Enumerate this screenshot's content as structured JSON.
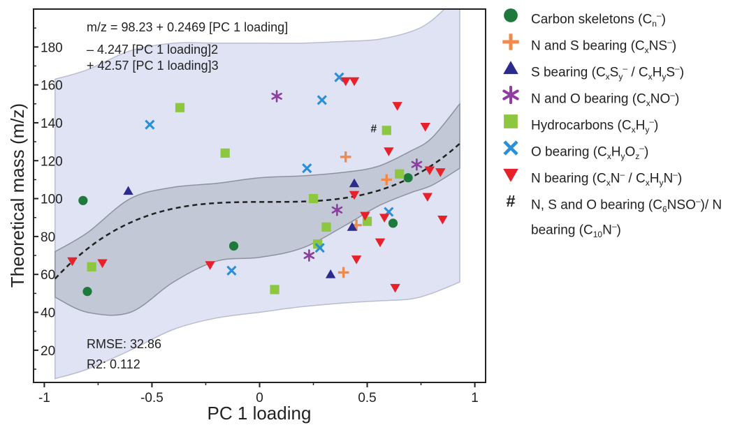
{
  "chart_data": {
    "type": "scatter",
    "xlabel": "PC 1 loading",
    "ylabel": "Theoretical mass (m/z)",
    "xlim": [
      -1.05,
      1.05
    ],
    "ylim": [
      3,
      200
    ],
    "x_ticks": [
      -1,
      -0.5,
      0,
      0.5,
      1
    ],
    "x_tick_labels": [
      "-1",
      "-0.5",
      "0",
      "0.5",
      "1"
    ],
    "y_ticks": [
      20,
      40,
      60,
      80,
      100,
      120,
      140,
      160,
      180
    ],
    "y_tick_labels": [
      "20",
      "40",
      "60",
      "80",
      "100",
      "120",
      "140",
      "160",
      "180"
    ],
    "grid": false,
    "legend_position": "right",
    "equation_lines": [
      "m/z = 98.23 + 0.2469 [PC 1 loading]",
      "– 4.247 [PC 1 loading]2",
      "+ 42.57 [PC 1 loading]3"
    ],
    "fit": {
      "intercept": 98.23,
      "c1": 0.2469,
      "c2": -4.247,
      "c3": 42.57,
      "x_range": [
        -0.95,
        0.93
      ],
      "rmse_label": "RMSE: 32.86",
      "r2_label": "R2: 0.112",
      "conf_band": [
        [
          -0.95,
          72,
          48
        ],
        [
          -0.8,
          82,
          40
        ],
        [
          -0.6,
          100,
          40
        ],
        [
          -0.4,
          106,
          56
        ],
        [
          -0.2,
          108,
          67
        ],
        [
          0,
          111,
          69
        ],
        [
          0.2,
          112,
          74
        ],
        [
          0.4,
          114,
          86
        ],
        [
          0.55,
          117,
          96
        ],
        [
          0.7,
          125,
          103
        ],
        [
          0.8,
          132,
          107
        ],
        [
          0.93,
          150,
          116
        ]
      ],
      "pred_band": [
        [
          -0.95,
          163,
          5
        ],
        [
          -0.8,
          168,
          10
        ],
        [
          -0.6,
          178,
          20
        ],
        [
          -0.4,
          182,
          31
        ],
        [
          -0.2,
          182,
          37
        ],
        [
          0,
          182,
          40
        ],
        [
          0.2,
          182,
          43
        ],
        [
          0.4,
          183,
          45
        ],
        [
          0.55,
          184,
          46
        ],
        [
          0.7,
          188,
          47
        ],
        [
          0.8,
          194,
          50
        ],
        [
          0.93,
          208,
          56
        ]
      ]
    },
    "series": [
      {
        "name": "Carbon skeletons (Cn–)",
        "color": "#1e7a3c",
        "marker": "circle",
        "points": [
          [
            -0.82,
            99
          ],
          [
            -0.8,
            51
          ],
          [
            -0.12,
            75
          ],
          [
            0.62,
            87
          ],
          [
            0.69,
            111
          ]
        ]
      },
      {
        "name": "N and S bearing (CxNS–)",
        "color": "#f08a4b",
        "marker": "plus",
        "points": [
          [
            0.4,
            122
          ],
          [
            0.45,
            86
          ],
          [
            0.39,
            61
          ],
          [
            0.59,
            110
          ]
        ]
      },
      {
        "name": "S bearing (CxSy– / CxHyS–)",
        "color": "#2b2a8f",
        "marker": "triangle-up",
        "points": [
          [
            -0.61,
            104
          ],
          [
            0.33,
            60
          ],
          [
            0.43,
            85
          ],
          [
            0.44,
            108
          ]
        ]
      },
      {
        "name": "N and O bearing (CxNO–)",
        "color": "#8e3ea0",
        "marker": "asterisk",
        "points": [
          [
            0.08,
            154
          ],
          [
            0.23,
            70
          ],
          [
            0.36,
            94
          ],
          [
            0.73,
            118
          ]
        ]
      },
      {
        "name": "Hydrocarbons (CxHy–)",
        "color": "#8dc63f",
        "marker": "square",
        "points": [
          [
            -0.37,
            148
          ],
          [
            -0.16,
            124
          ],
          [
            -0.78,
            64
          ],
          [
            0.07,
            52
          ],
          [
            0.25,
            100
          ],
          [
            0.27,
            76
          ],
          [
            0.31,
            85
          ],
          [
            0.5,
            88
          ],
          [
            0.59,
            136
          ],
          [
            0.65,
            113
          ]
        ]
      },
      {
        "name": "O bearing (CxHyOz–)",
        "color": "#2a8fd6",
        "marker": "x",
        "points": [
          [
            -0.51,
            139
          ],
          [
            -0.13,
            62
          ],
          [
            0.22,
            116
          ],
          [
            0.29,
            152
          ],
          [
            0.37,
            164
          ],
          [
            0.28,
            74
          ],
          [
            0.6,
            93
          ]
        ]
      },
      {
        "name": "N bearing (CxN– / CxHyN–)",
        "color": "#e8202a",
        "marker": "triangle-down",
        "points": [
          [
            0.4,
            162
          ],
          [
            0.44,
            162
          ],
          [
            0.64,
            149
          ],
          [
            0.77,
            138
          ],
          [
            0.6,
            125
          ],
          [
            0.79,
            115
          ],
          [
            0.84,
            114
          ],
          [
            0.44,
            102
          ],
          [
            0.78,
            101
          ],
          [
            0.49,
            91
          ],
          [
            0.58,
            90
          ],
          [
            0.85,
            89
          ],
          [
            0.56,
            77
          ],
          [
            -0.87,
            67
          ],
          [
            -0.73,
            66
          ],
          [
            -0.23,
            65
          ],
          [
            0.45,
            68
          ],
          [
            0.63,
            53
          ]
        ]
      },
      {
        "name": "N, S and O bearing (C6NSO–)/ N bearing (C10N–)",
        "color": "#222222",
        "marker": "hash",
        "points": [
          [
            0.53,
            137
          ]
        ]
      }
    ]
  },
  "legend": {
    "items": [
      {
        "name": "Carbon skeletons",
        "label_html": "Carbon skeletons (C<sub>n</sub><sup>–</sup>)",
        "marker": "circle",
        "color": "#1e7a3c"
      },
      {
        "name": "N and S bearing",
        "label_html": "N and S bearing (C<sub>x</sub>NS<sup>–</sup>)",
        "marker": "plus",
        "color": "#f08a4b"
      },
      {
        "name": "S bearing",
        "label_html": "S bearing (C<sub>x</sub>S<sub>y</sub><sup>–</sup> / C<sub>x</sub>H<sub>y</sub>S<sup>–</sup>)",
        "marker": "triangle-up",
        "color": "#2b2a8f"
      },
      {
        "name": "N and O bearing",
        "label_html": "N and O bearing (C<sub>x</sub>NO<sup>–</sup>)",
        "marker": "asterisk",
        "color": "#8e3ea0"
      },
      {
        "name": "Hydrocarbons",
        "label_html": "Hydrocarbons (C<sub>x</sub>H<sub>y</sub><sup>–</sup>)",
        "marker": "square",
        "color": "#8dc63f"
      },
      {
        "name": "O bearing",
        "label_html": "O bearing (C<sub>x</sub>H<sub>y</sub>O<sub>z</sub><sup>–</sup>)",
        "marker": "x",
        "color": "#2a8fd6"
      },
      {
        "name": "N bearing",
        "label_html": "N bearing (C<sub>x</sub>N<sup>–</sup> / C<sub>x</sub>H<sub>y</sub>N<sup>–</sup>)",
        "marker": "triangle-down",
        "color": "#e8202a"
      },
      {
        "name": "N, S and O bearing",
        "label_html": "N, S and O bearing (C<sub>6</sub>NSO<sup>–</sup>)/ N bearing (C<sub>10</sub>N<sup>–</sup>)",
        "marker": "hash",
        "color": "#222222"
      }
    ]
  },
  "colors": {
    "pred_band_fill": "#dfe3f3",
    "pred_band_stroke": "#b8bdd0",
    "conf_band_fill": "#c3c8d6",
    "conf_band_stroke": "#8d92a0",
    "fit_line": "#222222"
  }
}
